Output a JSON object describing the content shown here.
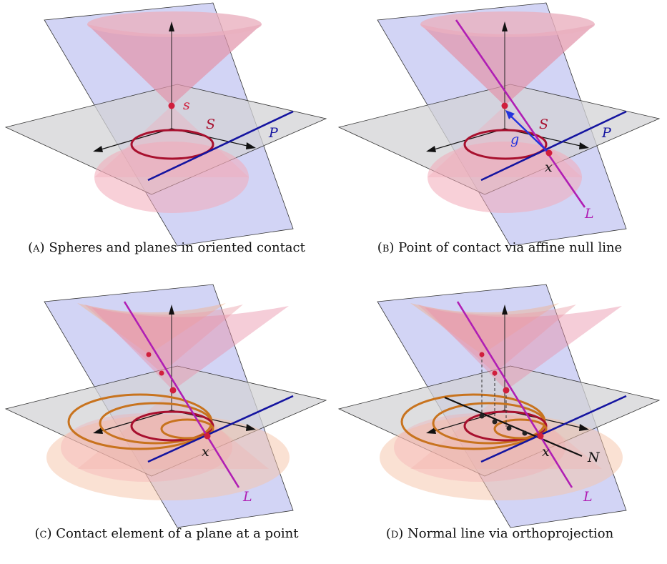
{
  "colors": {
    "vertical_plane": "#c7c9f2",
    "horizontal_plane": "#d3d3d5",
    "cone": "#e8a0b4",
    "circle": "#a8102e",
    "orange_circle": "#c8731e",
    "plane_line": "#1414a0",
    "null_line": "#b01eb4",
    "point": "#d01e3c",
    "generator": "#2233dd"
  },
  "panels": [
    {
      "tag": "(a)",
      "caption": "Spheres and planes in oriented contact",
      "labels": {
        "s": "s",
        "S": "S",
        "P": "P"
      }
    },
    {
      "tag": "(b)",
      "caption": "Point of contact via affine null line",
      "labels": {
        "S": "S",
        "P": "P",
        "g": "g",
        "x": "x",
        "L": "L"
      }
    },
    {
      "tag": "(c)",
      "caption": "Contact element of a plane at a point",
      "labels": {
        "x": "x",
        "L": "L"
      }
    },
    {
      "tag": "(d)",
      "caption": "Normal line via orthoprojection",
      "labels": {
        "x": "x",
        "L": "L",
        "N": "N"
      }
    }
  ]
}
